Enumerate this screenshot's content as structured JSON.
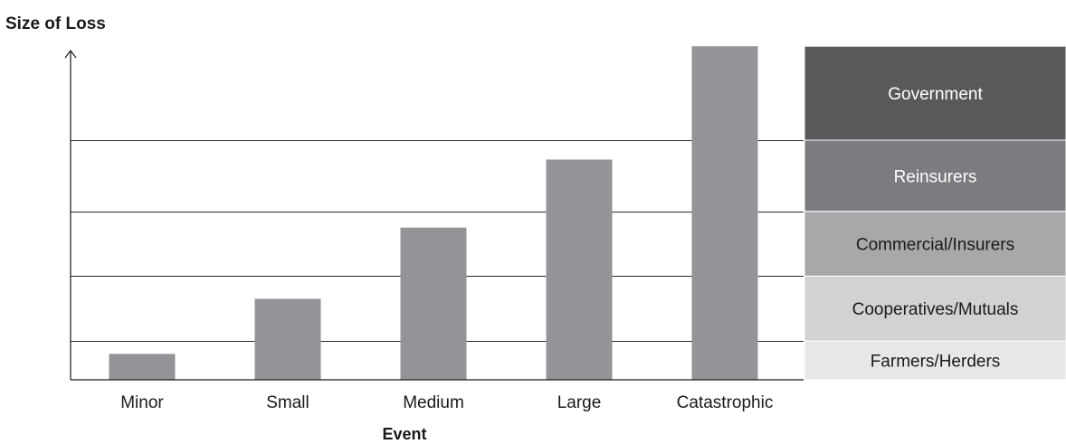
{
  "chart_data": {
    "type": "bar",
    "title": "",
    "ylabel": "Size of Loss",
    "xlabel": "Event",
    "categories": [
      "Minor",
      "Small",
      "Medium",
      "Large",
      "Catastrophic"
    ],
    "values": [
      0.8,
      2.5,
      4.7,
      6.8,
      10.3
    ],
    "ylim": [
      0,
      10.5
    ],
    "grid_levels": [
      1.2,
      3.2,
      5.2,
      7.4
    ],
    "bar_color": "#939497",
    "tiers": [
      {
        "label": "Government",
        "from": 7.4,
        "to": 10.3,
        "color": "#58595b",
        "text_color": "#ffffff"
      },
      {
        "label": "Reinsurers",
        "from": 5.2,
        "to": 7.4,
        "color": "#7b7c7f",
        "text_color": "#ffffff"
      },
      {
        "label": "Commercial/Insurers",
        "from": 3.2,
        "to": 5.2,
        "color": "#a7a8aa",
        "text_color": "#1a1a1a"
      },
      {
        "label": "Cooperatives/Mutuals",
        "from": 1.2,
        "to": 3.2,
        "color": "#d1d2d3",
        "text_color": "#1a1a1a"
      },
      {
        "label": "Farmers/Herders",
        "from": 0,
        "to": 1.2,
        "color": "#e6e7e8",
        "text_color": "#1a1a1a"
      }
    ]
  }
}
